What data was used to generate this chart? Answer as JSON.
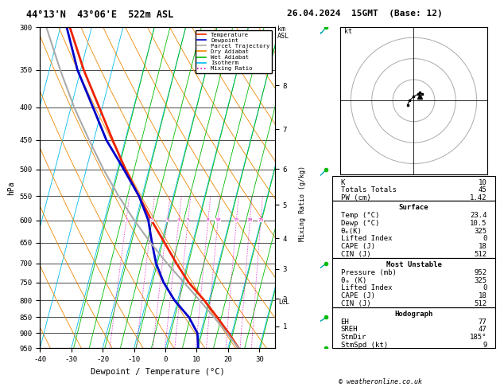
{
  "title_left": "44°13'N  43°06'E  522m ASL",
  "title_right": "26.04.2024  15GMT  (Base: 12)",
  "xlabel": "Dewpoint / Temperature (°C)",
  "ylabel_left": "hPa",
  "background": "#ffffff",
  "isotherm_color": "#00bbee",
  "dry_adiabat_color": "#ee8800",
  "wet_adiabat_color": "#00bb00",
  "mixing_ratio_color": "#dd00bb",
  "temp_color": "#ee2200",
  "dewp_color": "#0000cc",
  "parcel_color": "#aaaaaa",
  "wind_barb_color": "#00aaaa",
  "legend_entries": [
    "Temperature",
    "Dewpoint",
    "Parcel Trajectory",
    "Dry Adiabat",
    "Wet Adiabat",
    "Isotherm",
    "Mixing Ratio"
  ],
  "legend_colors": [
    "#ee2200",
    "#0000cc",
    "#aaaaaa",
    "#ee8800",
    "#00bb00",
    "#00bbee",
    "#dd00bb"
  ],
  "legend_styles": [
    "-",
    "-",
    "-",
    "-",
    "-",
    "-",
    ":"
  ],
  "stats_K": 10,
  "stats_TT": 45,
  "stats_PW": 1.42,
  "surf_temp": 23.4,
  "surf_dewp": 10.5,
  "surf_thetae": 325,
  "surf_li": 0,
  "surf_cape": 18,
  "surf_cin": 512,
  "mu_pressure": 952,
  "mu_thetae": 325,
  "mu_li": 0,
  "mu_cape": 18,
  "mu_cin": 512,
  "hodo_EH": 77,
  "hodo_SREH": 47,
  "hodo_StmDir": "185°",
  "hodo_StmSpd": 9,
  "copyright": "© weatheronline.co.uk",
  "pressure_levels": [
    300,
    350,
    400,
    450,
    500,
    550,
    600,
    650,
    700,
    750,
    800,
    850,
    900,
    950
  ],
  "temp_profile_pressure": [
    950,
    900,
    850,
    800,
    750,
    700,
    650,
    600,
    550,
    500,
    450,
    400,
    350,
    300
  ],
  "temp_profile_temp": [
    23.4,
    19.0,
    14.0,
    8.5,
    2.0,
    -3.5,
    -9.0,
    -15.0,
    -21.0,
    -27.5,
    -34.0,
    -41.0,
    -49.0,
    -57.0
  ],
  "dewp_profile_pressure": [
    950,
    900,
    850,
    800,
    750,
    700,
    650,
    600,
    550,
    500,
    450,
    400,
    350,
    300
  ],
  "dewp_profile_temp": [
    10.5,
    9.0,
    5.0,
    -1.0,
    -6.0,
    -10.0,
    -13.0,
    -16.0,
    -21.0,
    -28.0,
    -36.0,
    -43.0,
    -51.0,
    -58.0
  ],
  "parcel_profile_pressure": [
    950,
    900,
    850,
    800,
    750,
    700,
    650,
    600,
    550,
    500,
    450,
    400,
    350,
    300
  ],
  "parcel_profile_temp": [
    23.4,
    18.5,
    13.0,
    7.0,
    0.5,
    -6.5,
    -13.5,
    -20.5,
    -27.5,
    -34.5,
    -41.5,
    -49.0,
    -56.5,
    -64.5
  ],
  "mixing_ratio_values": [
    1,
    2,
    3,
    4,
    5,
    8,
    10,
    15,
    20,
    25
  ],
  "km_ticks": [
    1,
    2,
    3,
    4,
    5,
    6,
    7,
    8
  ],
  "km_pressures": [
    878,
    795,
    715,
    640,
    568,
    499,
    433,
    370
  ],
  "lcl_pressure": 805,
  "wind_profile_pressure": [
    950,
    850,
    700,
    500,
    300
  ],
  "wind_u": [
    2,
    3,
    5,
    8,
    12
  ],
  "wind_v": [
    1,
    2,
    4,
    8,
    14
  ],
  "skew_per_lnp": 23.0,
  "pmin": 300,
  "pmax": 950,
  "tmin": -40,
  "tmax": 35
}
